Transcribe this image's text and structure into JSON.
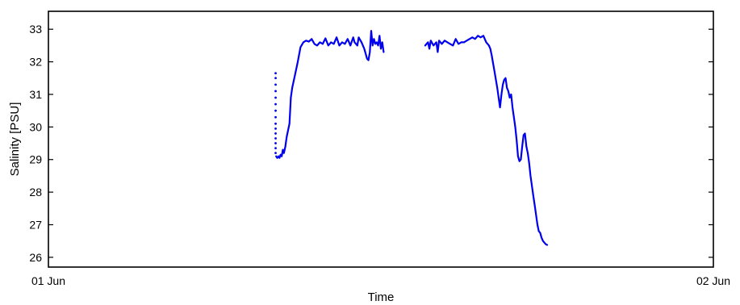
{
  "chart_data": {
    "type": "line",
    "title": "",
    "xlabel": "Time",
    "ylabel": "Salinity [PSU]",
    "x_unit": "hours after 01 Jun 00:00",
    "xlim": [
      0,
      24
    ],
    "ylim": [
      25.7,
      33.55
    ],
    "x_tick_labels": [
      {
        "label": "01 Jun",
        "x": 0
      },
      {
        "label": "02 Jun",
        "x": 24
      }
    ],
    "y_ticks": [
      26,
      27,
      28,
      29,
      30,
      31,
      32,
      33
    ],
    "grid": false,
    "color": "#0000ee",
    "sparse_points": {
      "x": [
        8.2,
        8.2,
        8.2,
        8.2,
        8.2,
        8.2,
        8.2,
        8.2,
        8.2,
        8.2,
        8.2,
        8.2,
        8.2,
        8.2,
        8.2
      ],
      "y": [
        31.65,
        31.5,
        31.3,
        31.1,
        30.9,
        30.7,
        30.5,
        30.3,
        30.1,
        29.95,
        29.8,
        29.65,
        29.5,
        29.35,
        29.2
      ]
    },
    "series": [
      {
        "x": [
          8.22,
          8.26,
          8.3,
          8.34,
          8.38,
          8.42,
          8.46,
          8.5,
          8.55,
          8.6,
          8.65,
          8.7,
          8.75,
          8.8,
          8.9,
          9.0,
          9.1,
          9.2,
          9.3,
          9.4,
          9.5,
          9.6,
          9.7,
          9.8,
          9.9,
          10.0,
          10.1,
          10.2,
          10.3,
          10.4,
          10.5,
          10.6,
          10.7,
          10.8,
          10.9,
          11.0,
          11.05,
          11.1,
          11.15,
          11.2,
          11.3,
          11.4,
          11.5,
          11.55,
          11.6,
          11.65,
          11.7,
          11.75,
          11.8,
          11.85,
          11.9,
          11.95,
          12.0,
          12.05,
          12.1
        ],
        "y": [
          29.1,
          29.05,
          29.1,
          29.05,
          29.15,
          29.1,
          29.3,
          29.2,
          29.4,
          29.7,
          29.9,
          30.1,
          30.9,
          31.2,
          31.6,
          32.0,
          32.45,
          32.6,
          32.65,
          32.62,
          32.7,
          32.55,
          32.5,
          32.6,
          32.55,
          32.72,
          32.5,
          32.6,
          32.55,
          32.75,
          32.5,
          32.6,
          32.55,
          32.7,
          32.5,
          32.75,
          32.6,
          32.55,
          32.5,
          32.75,
          32.6,
          32.4,
          32.1,
          32.05,
          32.3,
          32.95,
          32.5,
          32.7,
          32.55,
          32.6,
          32.5,
          32.8,
          32.4,
          32.6,
          32.3
        ]
      },
      {
        "x": [
          13.6,
          13.7,
          13.75,
          13.8,
          13.9,
          14.0,
          14.05,
          14.1,
          14.2,
          14.3,
          14.4,
          14.5,
          14.6,
          14.7,
          14.8,
          14.9,
          15.0,
          15.1,
          15.2,
          15.3,
          15.4,
          15.5,
          15.6,
          15.7,
          15.8,
          15.9,
          15.95,
          16.0,
          16.1,
          16.2,
          16.25,
          16.3,
          16.35,
          16.4,
          16.45,
          16.5,
          16.55,
          16.6,
          16.65,
          16.7,
          16.75,
          16.8,
          16.85,
          16.9,
          16.95,
          17.0,
          17.05,
          17.1,
          17.15,
          17.2,
          17.25,
          17.3,
          17.35,
          17.4,
          17.45,
          17.5,
          17.55,
          17.6,
          17.65,
          17.7,
          17.75,
          17.8,
          17.85,
          17.9,
          17.95,
          18.0
        ],
        "y": [
          32.5,
          32.6,
          32.4,
          32.65,
          32.5,
          32.6,
          32.3,
          32.65,
          32.55,
          32.65,
          32.6,
          32.55,
          32.5,
          32.7,
          32.55,
          32.6,
          32.6,
          32.65,
          32.7,
          32.75,
          32.7,
          32.8,
          32.75,
          32.8,
          32.6,
          32.5,
          32.4,
          32.2,
          31.7,
          31.2,
          30.9,
          30.6,
          31.0,
          31.3,
          31.45,
          31.5,
          31.2,
          31.1,
          30.9,
          31.0,
          30.6,
          30.3,
          30.0,
          29.6,
          29.1,
          28.95,
          29.0,
          29.4,
          29.75,
          29.8,
          29.4,
          29.2,
          28.9,
          28.5,
          28.2,
          27.9,
          27.6,
          27.3,
          27.0,
          26.8,
          26.75,
          26.6,
          26.5,
          26.45,
          26.4,
          26.38
        ]
      }
    ]
  }
}
